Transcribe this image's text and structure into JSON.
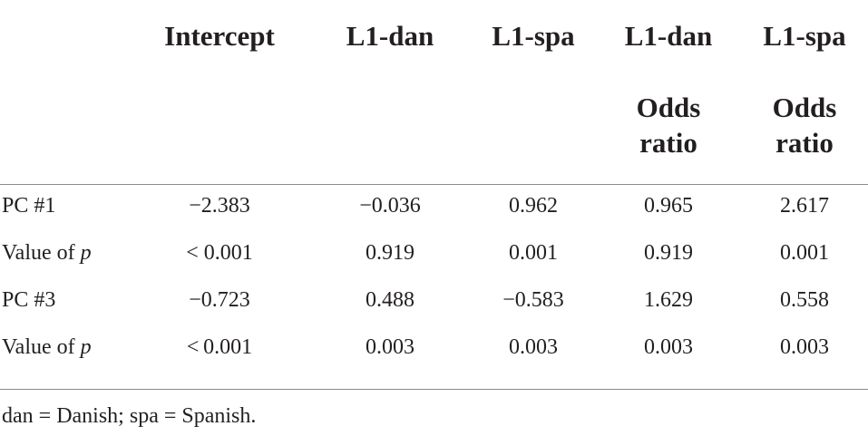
{
  "table": {
    "header": [
      "Intercept",
      "L1-dan",
      "L1-spa",
      "L1-dan",
      "L1-spa"
    ],
    "subheader": [
      null,
      null,
      null,
      "Odds ratio",
      "Odds ratio"
    ],
    "rows": [
      {
        "label": [
          "PC #1"
        ],
        "cells": [
          "−2.383",
          "−0.036",
          "0.962",
          "0.965",
          "2.617"
        ]
      },
      {
        "label": [
          "Value of",
          "p"
        ],
        "cells": [
          "< 0.001",
          "0.919",
          "0.001",
          "0.919",
          "0.001"
        ]
      },
      {
        "label": [
          "PC #3"
        ],
        "cells": [
          "−0.723",
          "0.488",
          "−0.583",
          "1.629",
          "0.558"
        ]
      },
      {
        "label": [
          "Value of",
          "p"
        ],
        "cells": [
          "< 0.001",
          "0.003",
          "0.003",
          "0.003",
          "0.003"
        ]
      }
    ]
  },
  "footnote": "dan = Danish; spa = Spanish."
}
